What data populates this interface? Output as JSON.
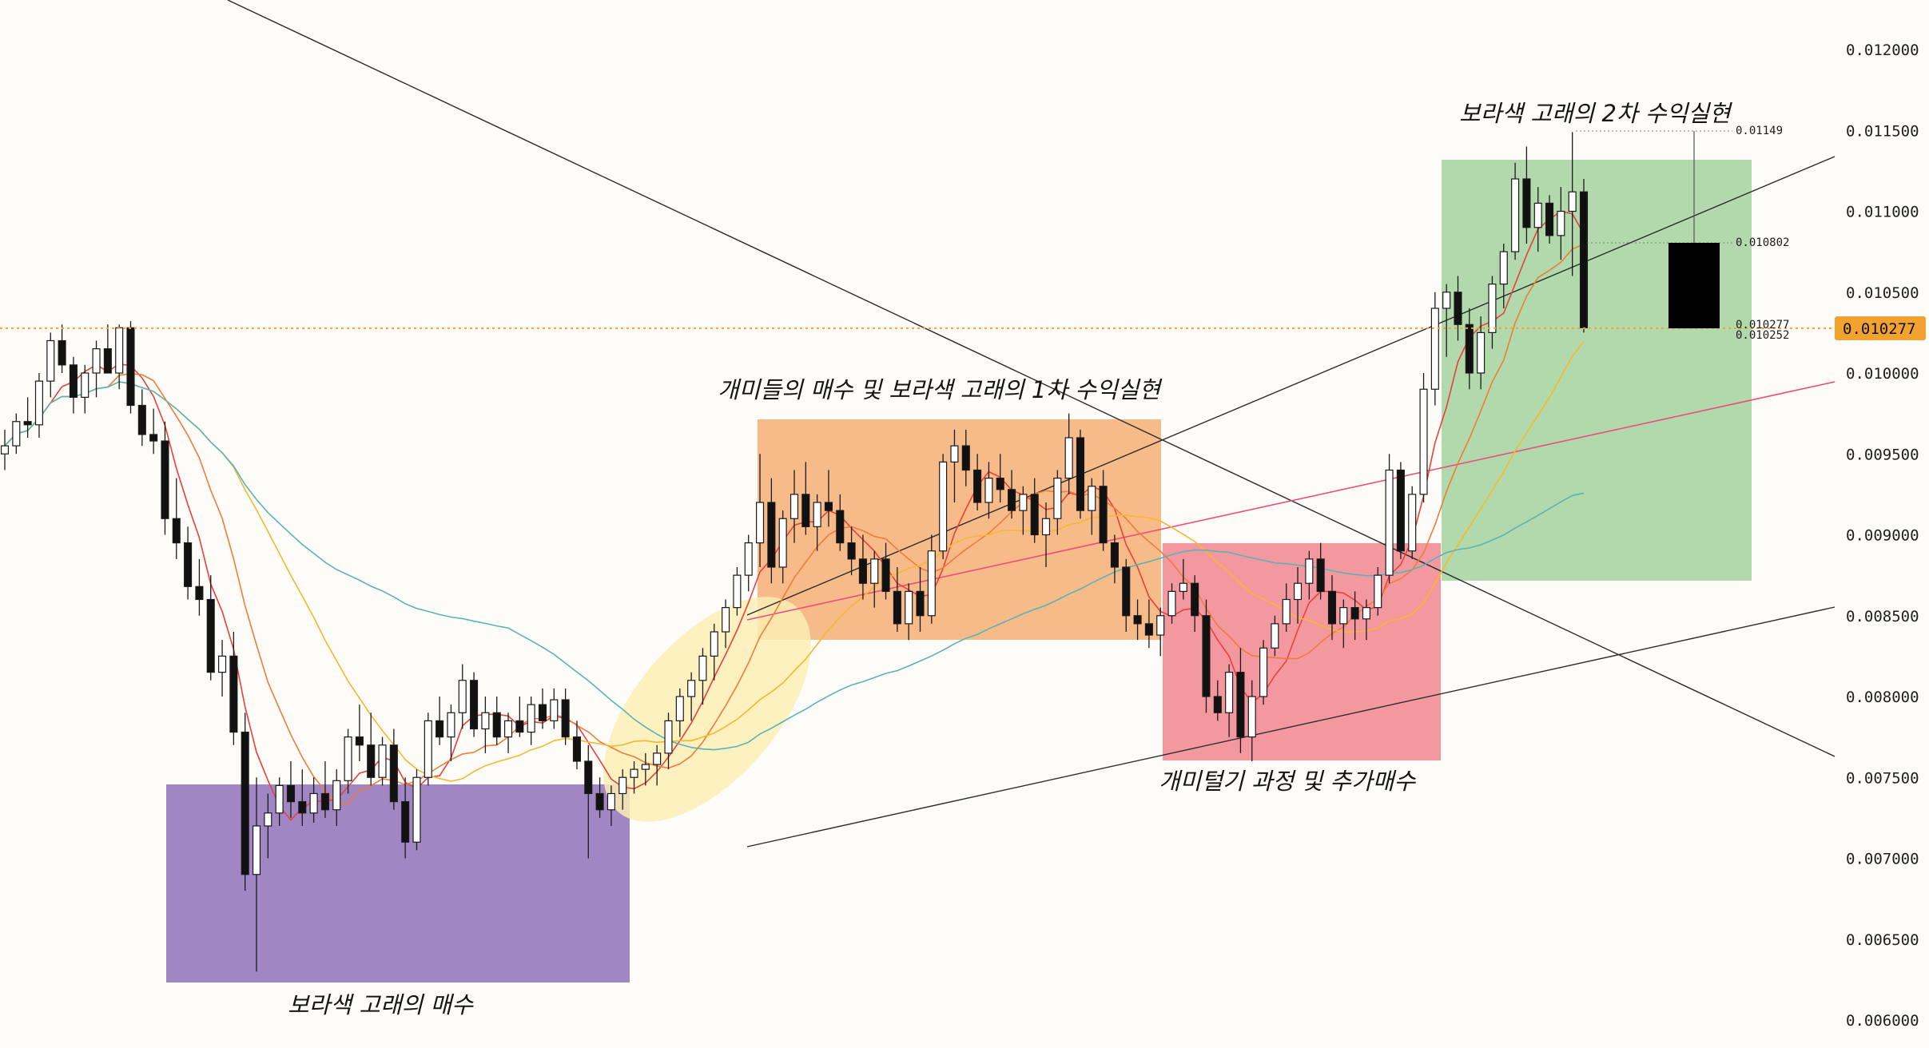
{
  "chart_data": {
    "type": "candlestick",
    "y_axis": {
      "position": "right",
      "range": [
        0.006,
        0.012
      ],
      "ticks": [
        "0.012000",
        "0.011500",
        "0.011000",
        "0.010500",
        "0.010000",
        "0.009500",
        "0.009000",
        "0.008500",
        "0.008000",
        "0.007500",
        "0.007000",
        "0.006500",
        "0.006000"
      ]
    },
    "current_price": {
      "value": 0.010277,
      "label": "0.010277",
      "color": "#f2a22e"
    },
    "candles_ohlc": [
      [
        0.0095,
        0.00965,
        0.0094,
        0.00955
      ],
      [
        0.00955,
        0.00975,
        0.0095,
        0.0097
      ],
      [
        0.0097,
        0.00985,
        0.0096,
        0.00968
      ],
      [
        0.00968,
        0.01,
        0.0096,
        0.00995
      ],
      [
        0.00995,
        0.01025,
        0.00985,
        0.0102
      ],
      [
        0.0102,
        0.0103,
        0.01,
        0.01005
      ],
      [
        0.01005,
        0.0101,
        0.00975,
        0.00985
      ],
      [
        0.00985,
        0.01005,
        0.00975,
        0.01
      ],
      [
        0.01,
        0.0102,
        0.00985,
        0.01015
      ],
      [
        0.01015,
        0.0103,
        0.01,
        0.01
      ],
      [
        0.01,
        0.0103,
        0.0099,
        0.01028
      ],
      [
        0.01028,
        0.01032,
        0.00975,
        0.0098
      ],
      [
        0.0098,
        0.0099,
        0.00955,
        0.00962
      ],
      [
        0.00962,
        0.00978,
        0.0095,
        0.00958
      ],
      [
        0.00958,
        0.0097,
        0.009,
        0.0091
      ],
      [
        0.0091,
        0.00935,
        0.00885,
        0.00895
      ],
      [
        0.00895,
        0.00905,
        0.0086,
        0.00868
      ],
      [
        0.00868,
        0.00885,
        0.0085,
        0.0086
      ],
      [
        0.0086,
        0.00875,
        0.0081,
        0.00815
      ],
      [
        0.00815,
        0.00835,
        0.008,
        0.00825
      ],
      [
        0.00825,
        0.0084,
        0.0077,
        0.00778
      ],
      [
        0.00778,
        0.0079,
        0.0068,
        0.0069
      ],
      [
        0.0069,
        0.0075,
        0.0063,
        0.0072
      ],
      [
        0.0072,
        0.0074,
        0.007,
        0.00728
      ],
      [
        0.00728,
        0.0075,
        0.0072,
        0.00745
      ],
      [
        0.00745,
        0.0076,
        0.00725,
        0.00735
      ],
      [
        0.00735,
        0.00755,
        0.0072,
        0.00728
      ],
      [
        0.00728,
        0.0075,
        0.00722,
        0.0074
      ],
      [
        0.0074,
        0.0076,
        0.00725,
        0.0073
      ],
      [
        0.0073,
        0.00755,
        0.0072,
        0.00748
      ],
      [
        0.00748,
        0.0078,
        0.0074,
        0.00775
      ],
      [
        0.00775,
        0.00795,
        0.0076,
        0.0077
      ],
      [
        0.0077,
        0.0079,
        0.00745,
        0.0075
      ],
      [
        0.0075,
        0.00775,
        0.00745,
        0.0077
      ],
      [
        0.0077,
        0.0078,
        0.0073,
        0.00735
      ],
      [
        0.00735,
        0.0075,
        0.007,
        0.0071
      ],
      [
        0.0071,
        0.00755,
        0.00705,
        0.0075
      ],
      [
        0.0075,
        0.0079,
        0.00745,
        0.00785
      ],
      [
        0.00785,
        0.008,
        0.0077,
        0.00775
      ],
      [
        0.00775,
        0.00795,
        0.0076,
        0.0079
      ],
      [
        0.0079,
        0.0082,
        0.0078,
        0.0081
      ],
      [
        0.0081,
        0.00815,
        0.00775,
        0.0078
      ],
      [
        0.0078,
        0.008,
        0.00765,
        0.0079
      ],
      [
        0.0079,
        0.008,
        0.0077,
        0.00775
      ],
      [
        0.00775,
        0.0079,
        0.00765,
        0.00785
      ],
      [
        0.00785,
        0.008,
        0.00775,
        0.00778
      ],
      [
        0.00778,
        0.008,
        0.0077,
        0.00795
      ],
      [
        0.00795,
        0.00805,
        0.0078,
        0.00785
      ],
      [
        0.00785,
        0.00805,
        0.0078,
        0.00798
      ],
      [
        0.00798,
        0.00805,
        0.0077,
        0.00775
      ],
      [
        0.00775,
        0.00785,
        0.00755,
        0.0076
      ],
      [
        0.0076,
        0.0077,
        0.007,
        0.0074
      ],
      [
        0.0074,
        0.0075,
        0.00725,
        0.0073
      ],
      [
        0.0073,
        0.00745,
        0.0072,
        0.0074
      ],
      [
        0.0074,
        0.00755,
        0.0073,
        0.0075
      ],
      [
        0.0075,
        0.0076,
        0.0074,
        0.00755
      ],
      [
        0.00755,
        0.00765,
        0.00745,
        0.00758
      ],
      [
        0.00758,
        0.0077,
        0.00745,
        0.00765
      ],
      [
        0.00765,
        0.0079,
        0.00755,
        0.00785
      ],
      [
        0.00785,
        0.00805,
        0.00775,
        0.008
      ],
      [
        0.008,
        0.00815,
        0.00785,
        0.0081
      ],
      [
        0.0081,
        0.0083,
        0.00795,
        0.00825
      ],
      [
        0.00825,
        0.00845,
        0.0081,
        0.0084
      ],
      [
        0.0084,
        0.0086,
        0.0083,
        0.00855
      ],
      [
        0.00855,
        0.0088,
        0.0085,
        0.00875
      ],
      [
        0.00875,
        0.009,
        0.00865,
        0.00895
      ],
      [
        0.00895,
        0.0095,
        0.0088,
        0.0092
      ],
      [
        0.0092,
        0.00935,
        0.0087,
        0.0088
      ],
      [
        0.0088,
        0.00915,
        0.0087,
        0.0091
      ],
      [
        0.0091,
        0.0094,
        0.00895,
        0.00925
      ],
      [
        0.00925,
        0.00945,
        0.009,
        0.00905
      ],
      [
        0.00905,
        0.00925,
        0.0089,
        0.0092
      ],
      [
        0.0092,
        0.0094,
        0.00905,
        0.00915
      ],
      [
        0.00915,
        0.00925,
        0.0089,
        0.00895
      ],
      [
        0.00895,
        0.00905,
        0.00875,
        0.00885
      ],
      [
        0.00885,
        0.009,
        0.0086,
        0.0087
      ],
      [
        0.0087,
        0.0089,
        0.00855,
        0.00885
      ],
      [
        0.00885,
        0.00895,
        0.0086,
        0.00865
      ],
      [
        0.00865,
        0.0088,
        0.0084,
        0.00845
      ],
      [
        0.00845,
        0.0087,
        0.00835,
        0.00865
      ],
      [
        0.00865,
        0.0088,
        0.0084,
        0.0085
      ],
      [
        0.0085,
        0.009,
        0.00845,
        0.0089
      ],
      [
        0.0089,
        0.0095,
        0.00885,
        0.00945
      ],
      [
        0.00945,
        0.00965,
        0.0092,
        0.00955
      ],
      [
        0.00955,
        0.00965,
        0.0093,
        0.0094
      ],
      [
        0.0094,
        0.0095,
        0.00915,
        0.0092
      ],
      [
        0.0092,
        0.00945,
        0.0091,
        0.00935
      ],
      [
        0.00935,
        0.0095,
        0.0092,
        0.00928
      ],
      [
        0.00928,
        0.0094,
        0.0091,
        0.00915
      ],
      [
        0.00915,
        0.0093,
        0.009,
        0.00925
      ],
      [
        0.00925,
        0.00935,
        0.00895,
        0.009
      ],
      [
        0.009,
        0.0092,
        0.0088,
        0.0091
      ],
      [
        0.0091,
        0.0094,
        0.009,
        0.00935
      ],
      [
        0.00935,
        0.00975,
        0.00925,
        0.0096
      ],
      [
        0.0096,
        0.00965,
        0.0091,
        0.00915
      ],
      [
        0.00915,
        0.00935,
        0.009,
        0.0093
      ],
      [
        0.0093,
        0.0094,
        0.0089,
        0.00895
      ],
      [
        0.00895,
        0.009,
        0.0087,
        0.0088
      ],
      [
        0.0088,
        0.00885,
        0.0084,
        0.0085
      ],
      [
        0.0085,
        0.0086,
        0.00835,
        0.00845
      ],
      [
        0.00845,
        0.0086,
        0.0083,
        0.00838
      ],
      [
        0.00838,
        0.00855,
        0.00825,
        0.0085
      ],
      [
        0.0085,
        0.0087,
        0.00845,
        0.00865
      ],
      [
        0.00865,
        0.00885,
        0.0086,
        0.0087
      ],
      [
        0.0087,
        0.00875,
        0.0084,
        0.0085
      ],
      [
        0.0085,
        0.0086,
        0.0079,
        0.008
      ],
      [
        0.008,
        0.0081,
        0.00785,
        0.0079
      ],
      [
        0.0079,
        0.0082,
        0.00775,
        0.00815
      ],
      [
        0.00815,
        0.0083,
        0.00765,
        0.00775
      ],
      [
        0.00775,
        0.0081,
        0.0076,
        0.008
      ],
      [
        0.008,
        0.00835,
        0.00795,
        0.0083
      ],
      [
        0.0083,
        0.0085,
        0.00825,
        0.00845
      ],
      [
        0.00845,
        0.0087,
        0.0084,
        0.0086
      ],
      [
        0.0086,
        0.0088,
        0.00845,
        0.0087
      ],
      [
        0.0087,
        0.0089,
        0.0086,
        0.00885
      ],
      [
        0.00885,
        0.00895,
        0.0086,
        0.00865
      ],
      [
        0.00865,
        0.00875,
        0.00835,
        0.00845
      ],
      [
        0.00845,
        0.0086,
        0.0083,
        0.00855
      ],
      [
        0.00855,
        0.00865,
        0.00835,
        0.00848
      ],
      [
        0.00848,
        0.0086,
        0.00835,
        0.00855
      ],
      [
        0.00855,
        0.0088,
        0.0085,
        0.00875
      ],
      [
        0.00875,
        0.0095,
        0.0087,
        0.0094
      ],
      [
        0.0094,
        0.00945,
        0.00885,
        0.0089
      ],
      [
        0.0089,
        0.0093,
        0.00885,
        0.00925
      ],
      [
        0.00925,
        0.01,
        0.0092,
        0.0099
      ],
      [
        0.0099,
        0.0105,
        0.0098,
        0.0104
      ],
      [
        0.0104,
        0.01055,
        0.0101,
        0.0105
      ],
      [
        0.0105,
        0.0106,
        0.0102,
        0.0103
      ],
      [
        0.0103,
        0.0104,
        0.0099,
        0.01
      ],
      [
        0.01,
        0.01035,
        0.0099,
        0.01025
      ],
      [
        0.01025,
        0.0106,
        0.01015,
        0.01055
      ],
      [
        0.01055,
        0.0108,
        0.0104,
        0.01075
      ],
      [
        0.01075,
        0.0113,
        0.0107,
        0.0112
      ],
      [
        0.0112,
        0.0114,
        0.0108,
        0.0109
      ],
      [
        0.0109,
        0.01115,
        0.01075,
        0.01105
      ],
      [
        0.01105,
        0.0111,
        0.0108,
        0.01085
      ],
      [
        0.01085,
        0.01115,
        0.0107,
        0.011
      ],
      [
        0.011,
        0.01149,
        0.0106,
        0.01112
      ],
      [
        0.01112,
        0.0112,
        0.01025,
        0.01028
      ]
    ],
    "moving_averages": [
      {
        "name": "short",
        "color": "#e8413c"
      },
      {
        "name": "mid",
        "color": "#ee7d3a"
      },
      {
        "name": "long",
        "color": "#f5b82e"
      },
      {
        "name": "longest",
        "color": "#5cb3b5"
      }
    ],
    "zones": [
      {
        "color": "#9b7fc0",
        "label": "보라색 고래의 매수"
      },
      {
        "color": "#f6b27c",
        "label": "개미들의 매수 및 보라색 고래의 1차 수익실현"
      },
      {
        "color": "#f38d96",
        "label": "개미털기 과정 및 추가매수"
      },
      {
        "color": "#a8d5a2",
        "label": "보라색 고래의 2차 수익실현"
      },
      {
        "color": "#fbefb5",
        "label": ""
      }
    ],
    "price_labels": {
      "high": "0.01149",
      "mid": "0.010802",
      "a": "0.010277",
      "b": "0.010252"
    }
  }
}
